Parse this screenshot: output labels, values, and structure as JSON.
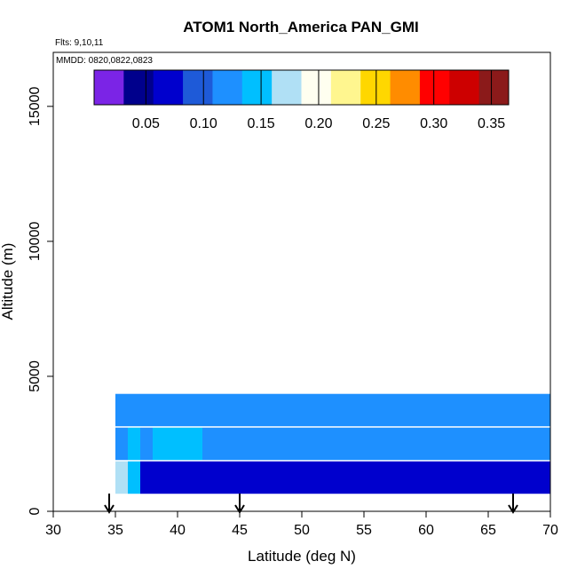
{
  "chart_data": {
    "type": "heatmap",
    "title": "ATOM1 North_America PAN_GMI",
    "flights_label": "Flts: 9,10,11",
    "dates_label": "MMDD: 0820,0822,0823",
    "xlabel": "Latitude (deg N)",
    "ylabel": "Altitude (m)",
    "xlim": [
      30,
      70
    ],
    "ylim": [
      0,
      17000
    ],
    "x_ticks": [
      "30",
      "35",
      "40",
      "45",
      "50",
      "55",
      "60",
      "65",
      "70"
    ],
    "y_ticks": [
      "0",
      "5000",
      "10000",
      "15000"
    ],
    "colorbar": {
      "range": [
        0.005,
        0.365
      ],
      "ticks": [
        "0.05",
        "0.10",
        "0.15",
        "0.20",
        "0.25",
        "0.30",
        "0.35"
      ],
      "colors": [
        "#7b24e6",
        "#00008c",
        "#0000cd",
        "#1e5ad8",
        "#1e90ff",
        "#00bfff",
        "#b0e0f5",
        "#fffff0",
        "#fff68f",
        "#ffd700",
        "#ff8c00",
        "#ff0000",
        "#cd0000",
        "#8b1a1a"
      ]
    },
    "arrows_latitude": [
      34.5,
      45,
      67
    ],
    "cells": [
      [
        35,
        1.25,
        0.16
      ],
      [
        36,
        1.25,
        0.15
      ],
      [
        37,
        1.25,
        0.08
      ],
      [
        38,
        1.25,
        0.06
      ],
      [
        39,
        1.25,
        0.07
      ],
      [
        40,
        1.25,
        0.08
      ],
      [
        41,
        1.25,
        0.06
      ],
      [
        42,
        1.25,
        0.06
      ],
      [
        43,
        1.25,
        0.06
      ],
      [
        44,
        1.25,
        0.06
      ],
      [
        45,
        1.25,
        0.06
      ],
      [
        46,
        1.25,
        0.06
      ],
      [
        47,
        1.25,
        0.06
      ],
      [
        48,
        1.25,
        0.06
      ],
      [
        49,
        1.25,
        0.06
      ],
      [
        50,
        1.25,
        0.06
      ],
      [
        51,
        1.25,
        0.06
      ],
      [
        52,
        1.25,
        0.06
      ],
      [
        53,
        1.25,
        0.06
      ],
      [
        54,
        1.25,
        0.06
      ],
      [
        55,
        1.25,
        0.06
      ],
      [
        56,
        1.25,
        0.06
      ],
      [
        57,
        1.25,
        0.06
      ],
      [
        58,
        1.25,
        0.06
      ],
      [
        59,
        1.25,
        0.06
      ],
      [
        60,
        1.25,
        0.06
      ],
      [
        61,
        1.25,
        0.06
      ],
      [
        62,
        1.25,
        0.06
      ],
      [
        63,
        1.25,
        0.06
      ],
      [
        64,
        1.25,
        0.06
      ],
      [
        65,
        1.25,
        0.06
      ],
      [
        66,
        1.25,
        0.06
      ],
      [
        67,
        1.25,
        0.06
      ],
      [
        68,
        1.25,
        0.06
      ],
      [
        69,
        1.25,
        0.06
      ],
      [
        35,
        2.5,
        0.13
      ],
      [
        36,
        2.5,
        0.14
      ],
      [
        37,
        2.5,
        0.13
      ],
      [
        38,
        2.5,
        0.15
      ],
      [
        39,
        2.5,
        0.14
      ],
      [
        40,
        2.5,
        0.15
      ],
      [
        41,
        2.5,
        0.14
      ],
      [
        42,
        2.5,
        0.12
      ],
      [
        43,
        2.5,
        0.12
      ],
      [
        44,
        2.5,
        0.12
      ],
      [
        45,
        2.5,
        0.12
      ],
      [
        46,
        2.5,
        0.12
      ],
      [
        47,
        2.5,
        0.12
      ],
      [
        48,
        2.5,
        0.12
      ],
      [
        49,
        2.5,
        0.12
      ],
      [
        50,
        2.5,
        0.12
      ],
      [
        51,
        2.5,
        0.12
      ],
      [
        52,
        2.5,
        0.12
      ],
      [
        53,
        2.5,
        0.12
      ],
      [
        54,
        2.5,
        0.12
      ],
      [
        55,
        2.5,
        0.12
      ],
      [
        56,
        2.5,
        0.12
      ],
      [
        57,
        2.5,
        0.12
      ],
      [
        58,
        2.5,
        0.12
      ],
      [
        59,
        2.5,
        0.12
      ],
      [
        60,
        2.5,
        0.12
      ],
      [
        61,
        2.5,
        0.12
      ],
      [
        62,
        2.5,
        0.12
      ],
      [
        63,
        2.5,
        0.12
      ],
      [
        64,
        2.5,
        0.12
      ],
      [
        65,
        2.5,
        0.12
      ],
      [
        66,
        2.5,
        0.12
      ],
      [
        67,
        2.5,
        0.12
      ],
      [
        68,
        2.5,
        0.12
      ],
      [
        69,
        2.5,
        0.12
      ],
      [
        35,
        3.75,
        0.12
      ],
      [
        36,
        3.75,
        0.12
      ],
      [
        37,
        3.75,
        0.12
      ],
      [
        38,
        3.75,
        0.12
      ],
      [
        39,
        3.75,
        0.12
      ],
      [
        40,
        3.75,
        0.12
      ],
      [
        41,
        3.75,
        0.12
      ],
      [
        42,
        3.75,
        0.12
      ],
      [
        43,
        3.75,
        0.12
      ],
      [
        44,
        3.75,
        0.12
      ],
      [
        45,
        3.75,
        0.12
      ],
      [
        46,
        3.75,
        0.12
      ],
      [
        47,
        3.75,
        0.12
      ],
      [
        48,
        3.75,
        0.12
      ],
      [
        49,
        3.75,
        0.12
      ],
      [
        50,
        3.75,
        0.12
      ],
      [
        51,
        3.75,
        0.12
      ],
      [
        52,
        3.75,
        0.12
      ],
      [
        53,
        3.75,
        0.12
      ],
      [
        54,
        3.75,
        0.12
      ],
      [
        55,
        3.75,
        0.12
      ],
      [
        56,
        3.75,
        0.12
      ],
      [
        57,
        3.75,
        0.12
      ],
      [
        58,
        3.75,
        0.12
      ],
      [
        59,
        3.75,
        0.12
      ],
      [
        60,
        3.75,
        0.12
      ],
      [
        61,
        3.75,
        0.12
      ],
      [
        62,
        3.75,
        0.12
      ],
      [
        63,
        3.75,
        0.12
      ],
      [
        64,
        3.75,
        0.12
      ],
      [
        65,
        3.75,
        0.12
      ],
      [
        66,
        3.75,
        0.12
      ],
      [
        67,
        3.75,
        0.12
      ],
      [
        68,
        3.75,
        0.12
      ],
      [
        69,
        3.75,
        0.12
      ]
    ]
  }
}
